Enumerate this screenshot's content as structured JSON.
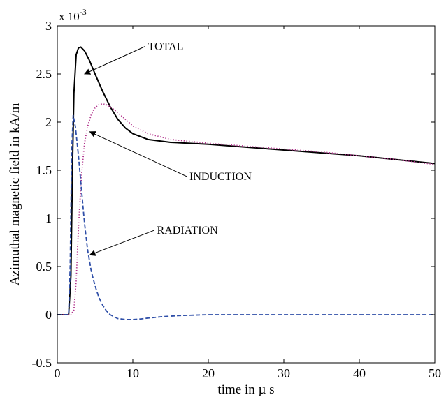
{
  "chart_data": {
    "type": "line",
    "title": "",
    "xlabel": "time  in   µ s",
    "ylabel": "Azimuthal magnetic field  in  kA/m",
    "y_multiplier": {
      "base": "x 10",
      "exponent": "-3"
    },
    "xlim": [
      0,
      50
    ],
    "ylim": [
      -0.5,
      3
    ],
    "grid": false,
    "legend": "none",
    "x_ticks": [
      0,
      10,
      20,
      30,
      40,
      50
    ],
    "y_ticks": [
      -0.5,
      0,
      0.5,
      1,
      1.5,
      2,
      2.5,
      3
    ],
    "x_tick_labels": [
      "0",
      "10",
      "20",
      "30",
      "40",
      "50"
    ],
    "y_tick_labels": [
      "-0.5",
      "0",
      "0.5",
      "1",
      "1.5",
      "2",
      "2.5",
      "3"
    ],
    "series": [
      {
        "key": "total",
        "color": "#000000",
        "dash": "solid",
        "x": [
          0,
          1.5,
          1.8,
          2.0,
          2.2,
          2.5,
          2.8,
          3.1,
          3.6,
          4.2,
          5,
          6,
          7,
          8,
          9,
          10,
          12,
          15,
          20,
          25,
          30,
          35,
          40,
          45,
          50
        ],
        "y": [
          0,
          0,
          0.4,
          1.5,
          2.3,
          2.7,
          2.77,
          2.78,
          2.74,
          2.65,
          2.5,
          2.32,
          2.16,
          2.03,
          1.94,
          1.88,
          1.82,
          1.79,
          1.77,
          1.74,
          1.71,
          1.68,
          1.65,
          1.61,
          1.57
        ]
      },
      {
        "key": "induction",
        "color": "#b0308a",
        "dash": "dotted",
        "x": [
          0,
          1.8,
          2.2,
          2.5,
          2.8,
          3.2,
          3.6,
          4.0,
          4.5,
          5,
          5.5,
          6,
          6.5,
          7,
          8,
          9,
          10,
          12,
          15,
          20,
          25,
          30,
          35,
          40,
          45,
          50
        ],
        "y": [
          0,
          0,
          0.05,
          0.35,
          0.9,
          1.45,
          1.78,
          1.95,
          2.08,
          2.15,
          2.18,
          2.19,
          2.18,
          2.16,
          2.1,
          2.03,
          1.96,
          1.88,
          1.82,
          1.78,
          1.75,
          1.72,
          1.69,
          1.65,
          1.61,
          1.56
        ]
      },
      {
        "key": "radiation",
        "color": "#2f4fa8",
        "dash": "dashed",
        "x": [
          0,
          1.5,
          1.7,
          1.9,
          2.1,
          2.4,
          2.8,
          3.2,
          3.6,
          4.0,
          4.5,
          5,
          5.5,
          6,
          6.5,
          7,
          8,
          9,
          10,
          11,
          12,
          14,
          16,
          20,
          25,
          30,
          40,
          50
        ],
        "y": [
          0,
          0,
          0.5,
          1.7,
          2.07,
          1.95,
          1.65,
          1.3,
          0.95,
          0.68,
          0.45,
          0.3,
          0.18,
          0.1,
          0.04,
          0.0,
          -0.04,
          -0.05,
          -0.05,
          -0.045,
          -0.035,
          -0.02,
          -0.01,
          0,
          0,
          0,
          0,
          0
        ]
      }
    ],
    "annotations": [
      {
        "text": "TOTAL",
        "series": "total",
        "text_at": [
          12,
          2.75
        ],
        "arrow_to": [
          3.6,
          2.5
        ]
      },
      {
        "text": "INDUCTION",
        "series": "induction",
        "text_at": [
          17.5,
          1.4
        ],
        "arrow_to": [
          4.3,
          1.9
        ]
      },
      {
        "text": "RADIATION",
        "series": "radiation",
        "text_at": [
          13.2,
          0.84
        ],
        "arrow_to": [
          4.3,
          0.62
        ]
      }
    ]
  }
}
